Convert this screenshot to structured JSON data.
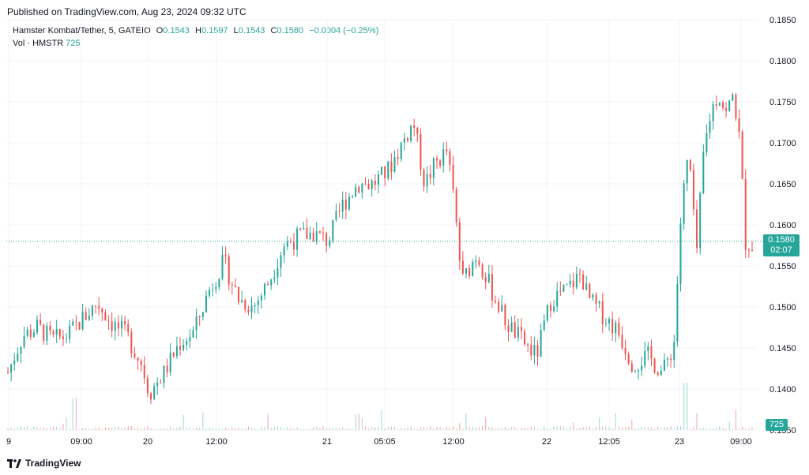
{
  "header": {
    "published": "Published on TradingView.com, Aug 23, 2024 09:32 UTC"
  },
  "legend": {
    "symbol": "Hamster Kombat/Tether, 5, GATEIO",
    "o_label": "O",
    "o_value": "0.1543",
    "h_label": "H",
    "h_value": "0.1597",
    "l_label": "L",
    "l_value": "0.1543",
    "c_label": "C",
    "c_value": "0.1580",
    "change": "−0.0004 (−0.25%)",
    "vol_label": "Vol · HMSTR",
    "vol_value": "725"
  },
  "badges": {
    "last_price": "0.1580",
    "countdown": "02:07",
    "last_volume": "725"
  },
  "footer": {
    "brand": "TradingView"
  },
  "colors": {
    "up": "#26a69a",
    "down": "#ef5350",
    "grid": "#f0f3fa",
    "text": "#131722"
  },
  "chart_data": {
    "type": "candlestick",
    "symbol": "Hamster Kombat/Tether",
    "interval": "5",
    "exchange": "GATEIO",
    "y_ticks": [
      "0.1850",
      "0.1800",
      "0.1750",
      "0.1700",
      "0.1650",
      "0.1600",
      "0.1550",
      "0.1500",
      "0.1450",
      "0.1400",
      "0.1350"
    ],
    "ylim": [
      0.135,
      0.185
    ],
    "x_ticks": [
      "9",
      "09:00",
      "20",
      "12:00",
      "21",
      "05:05",
      "12:00",
      "22",
      "12:05",
      "23",
      "09:00"
    ],
    "last_price": 0.158,
    "grid": true,
    "segments": [
      {
        "x": 0.0,
        "v": 0.142
      },
      {
        "x": 0.02,
        "v": 0.1465
      },
      {
        "x": 0.04,
        "v": 0.1475
      },
      {
        "x": 0.06,
        "v": 0.146
      },
      {
        "x": 0.08,
        "v": 0.1465
      },
      {
        "x": 0.1,
        "v": 0.1485
      },
      {
        "x": 0.12,
        "v": 0.1505
      },
      {
        "x": 0.14,
        "v": 0.148
      },
      {
        "x": 0.16,
        "v": 0.1465
      },
      {
        "x": 0.18,
        "v": 0.143
      },
      {
        "x": 0.19,
        "v": 0.1395
      },
      {
        "x": 0.21,
        "v": 0.142
      },
      {
        "x": 0.23,
        "v": 0.1455
      },
      {
        "x": 0.25,
        "v": 0.147
      },
      {
        "x": 0.27,
        "v": 0.152
      },
      {
        "x": 0.29,
        "v": 0.1555
      },
      {
        "x": 0.31,
        "v": 0.151
      },
      {
        "x": 0.33,
        "v": 0.15
      },
      {
        "x": 0.35,
        "v": 0.153
      },
      {
        "x": 0.37,
        "v": 0.1575
      },
      {
        "x": 0.39,
        "v": 0.1585
      },
      {
        "x": 0.41,
        "v": 0.159
      },
      {
        "x": 0.43,
        "v": 0.158
      },
      {
        "x": 0.45,
        "v": 0.1625
      },
      {
        "x": 0.47,
        "v": 0.165
      },
      {
        "x": 0.49,
        "v": 0.165
      },
      {
        "x": 0.51,
        "v": 0.1665
      },
      {
        "x": 0.53,
        "v": 0.17
      },
      {
        "x": 0.545,
        "v": 0.1725
      },
      {
        "x": 0.56,
        "v": 0.165
      },
      {
        "x": 0.575,
        "v": 0.1675
      },
      {
        "x": 0.59,
        "v": 0.169
      },
      {
        "x": 0.6,
        "v": 0.1625
      },
      {
        "x": 0.61,
        "v": 0.153
      },
      {
        "x": 0.63,
        "v": 0.1565
      },
      {
        "x": 0.65,
        "v": 0.152
      },
      {
        "x": 0.67,
        "v": 0.148
      },
      {
        "x": 0.69,
        "v": 0.146
      },
      {
        "x": 0.71,
        "v": 0.144
      },
      {
        "x": 0.73,
        "v": 0.151
      },
      {
        "x": 0.75,
        "v": 0.152
      },
      {
        "x": 0.77,
        "v": 0.154
      },
      {
        "x": 0.78,
        "v": 0.151
      },
      {
        "x": 0.8,
        "v": 0.149
      },
      {
        "x": 0.82,
        "v": 0.147
      },
      {
        "x": 0.84,
        "v": 0.143
      },
      {
        "x": 0.86,
        "v": 0.144
      },
      {
        "x": 0.88,
        "v": 0.142
      },
      {
        "x": 0.895,
        "v": 0.1455
      },
      {
        "x": 0.905,
        "v": 0.162
      },
      {
        "x": 0.915,
        "v": 0.169
      },
      {
        "x": 0.925,
        "v": 0.156
      },
      {
        "x": 0.935,
        "v": 0.169
      },
      {
        "x": 0.945,
        "v": 0.174
      },
      {
        "x": 0.955,
        "v": 0.176
      },
      {
        "x": 0.965,
        "v": 0.1735
      },
      {
        "x": 0.975,
        "v": 0.176
      },
      {
        "x": 0.985,
        "v": 0.169
      },
      {
        "x": 0.99,
        "v": 0.158
      },
      {
        "x": 1.0,
        "v": 0.1575
      }
    ],
    "volume_peaks": [
      {
        "x": 0.09,
        "v": 8
      },
      {
        "x": 0.35,
        "v": 4
      },
      {
        "x": 0.47,
        "v": 4
      },
      {
        "x": 0.91,
        "v": 12
      }
    ]
  }
}
